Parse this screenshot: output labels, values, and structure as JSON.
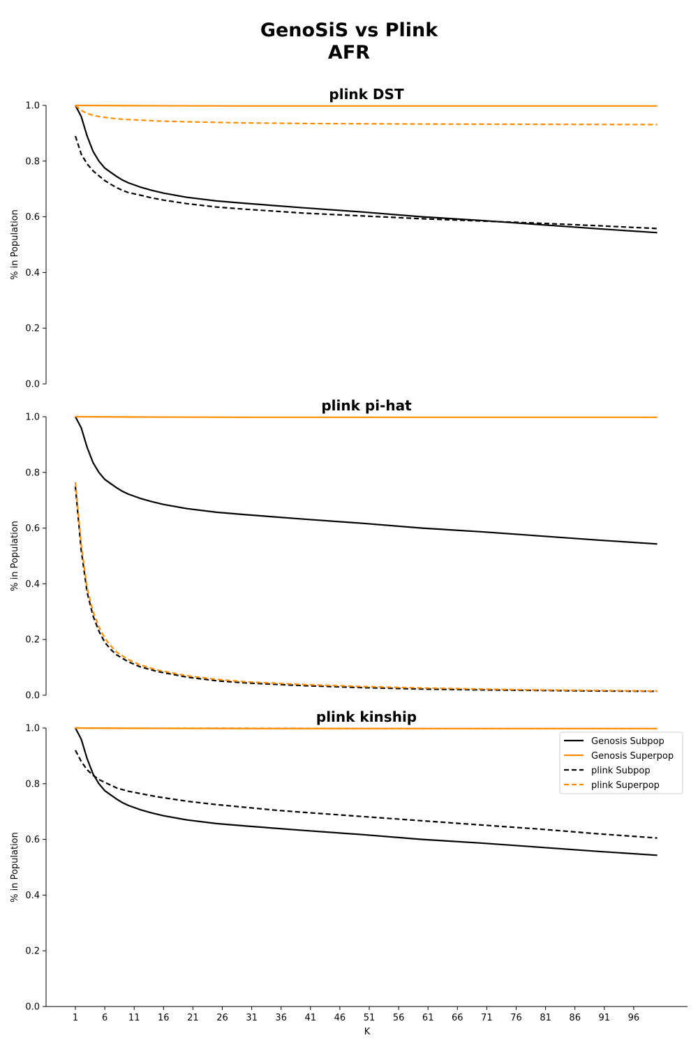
{
  "figure": {
    "title_line1": "GenoSiS vs Plink",
    "title_line2": "AFR"
  },
  "chart_data": [
    {
      "type": "line",
      "title": "plink DST",
      "xlabel": "",
      "ylabel": "% in Population",
      "xlim": [
        1,
        100
      ],
      "ylim": [
        0.0,
        1.0
      ],
      "x_ticks": [
        1,
        6,
        11,
        16,
        21,
        26,
        31,
        36,
        41,
        46,
        51,
        56,
        61,
        66,
        71,
        76,
        81,
        86,
        91,
        96
      ],
      "y_ticks": [
        0.0,
        0.2,
        0.4,
        0.6,
        0.8,
        1.0
      ],
      "show_x_ticks": false,
      "grid": false,
      "series": [
        {
          "name": "Genosis Subpop",
          "color": "#000000",
          "dash": "solid",
          "x": [
            1,
            2,
            3,
            4,
            5,
            6,
            7,
            8,
            9,
            10,
            12,
            14,
            16,
            20,
            25,
            30,
            40,
            50,
            60,
            70,
            80,
            90,
            100
          ],
          "values": [
            1.0,
            0.96,
            0.89,
            0.835,
            0.8,
            0.775,
            0.76,
            0.745,
            0.732,
            0.722,
            0.707,
            0.695,
            0.685,
            0.67,
            0.657,
            0.648,
            0.632,
            0.617,
            0.6,
            0.587,
            0.572,
            0.557,
            0.543
          ]
        },
        {
          "name": "Genosis Superpop",
          "color": "#ff8c00",
          "dash": "solid",
          "x": [
            1,
            10,
            30,
            60,
            100
          ],
          "values": [
            1.0,
            0.999,
            0.998,
            0.998,
            0.998
          ]
        },
        {
          "name": "plink Subpop",
          "color": "#000000",
          "dash": "dashed",
          "x": [
            1,
            2,
            3,
            4,
            5,
            6,
            7,
            8,
            9,
            10,
            12,
            14,
            16,
            20,
            25,
            30,
            40,
            50,
            60,
            70,
            80,
            90,
            100
          ],
          "values": [
            0.89,
            0.825,
            0.79,
            0.765,
            0.747,
            0.73,
            0.717,
            0.705,
            0.695,
            0.687,
            0.678,
            0.668,
            0.66,
            0.647,
            0.635,
            0.627,
            0.613,
            0.603,
            0.593,
            0.585,
            0.577,
            0.568,
            0.558
          ]
        },
        {
          "name": "plink Superpop",
          "color": "#ff8c00",
          "dash": "dashed",
          "x": [
            1,
            2,
            3,
            4,
            5,
            6,
            8,
            10,
            15,
            20,
            30,
            40,
            60,
            80,
            100
          ],
          "values": [
            1.0,
            0.982,
            0.971,
            0.965,
            0.96,
            0.957,
            0.952,
            0.949,
            0.944,
            0.941,
            0.937,
            0.935,
            0.933,
            0.932,
            0.931
          ]
        }
      ]
    },
    {
      "type": "line",
      "title": "plink pi-hat",
      "xlabel": "",
      "ylabel": "% in Population",
      "xlim": [
        1,
        100
      ],
      "ylim": [
        0.0,
        1.0
      ],
      "x_ticks": [
        1,
        6,
        11,
        16,
        21,
        26,
        31,
        36,
        41,
        46,
        51,
        56,
        61,
        66,
        71,
        76,
        81,
        86,
        91,
        96
      ],
      "y_ticks": [
        0.0,
        0.2,
        0.4,
        0.6,
        0.8,
        1.0
      ],
      "show_x_ticks": false,
      "grid": false,
      "series": [
        {
          "name": "Genosis Subpop",
          "color": "#000000",
          "dash": "solid",
          "x": [
            1,
            2,
            3,
            4,
            5,
            6,
            7,
            8,
            9,
            10,
            12,
            14,
            16,
            20,
            25,
            30,
            40,
            50,
            60,
            70,
            80,
            90,
            100
          ],
          "values": [
            1.0,
            0.96,
            0.89,
            0.835,
            0.8,
            0.775,
            0.76,
            0.745,
            0.732,
            0.722,
            0.707,
            0.695,
            0.685,
            0.67,
            0.657,
            0.648,
            0.632,
            0.617,
            0.6,
            0.587,
            0.572,
            0.557,
            0.543
          ]
        },
        {
          "name": "Genosis Superpop",
          "color": "#ff8c00",
          "dash": "solid",
          "x": [
            1,
            10,
            30,
            60,
            100
          ],
          "values": [
            1.0,
            0.999,
            0.998,
            0.998,
            0.998
          ]
        },
        {
          "name": "plink Subpop",
          "color": "#000000",
          "dash": "dashed",
          "x": [
            1,
            2,
            3,
            4,
            5,
            6,
            7,
            8,
            10,
            12,
            15,
            20,
            25,
            30,
            40,
            50,
            60,
            70,
            80,
            90,
            100
          ],
          "values": [
            0.75,
            0.52,
            0.37,
            0.285,
            0.23,
            0.19,
            0.165,
            0.145,
            0.12,
            0.102,
            0.085,
            0.065,
            0.052,
            0.044,
            0.034,
            0.027,
            0.022,
            0.019,
            0.017,
            0.015,
            0.014
          ]
        },
        {
          "name": "plink Superpop",
          "color": "#ff8c00",
          "dash": "dashed",
          "x": [
            1,
            2,
            3,
            4,
            5,
            6,
            7,
            8,
            10,
            12,
            15,
            20,
            25,
            30,
            40,
            50,
            60,
            70,
            80,
            90,
            100
          ],
          "values": [
            0.765,
            0.54,
            0.385,
            0.3,
            0.245,
            0.205,
            0.178,
            0.155,
            0.128,
            0.109,
            0.09,
            0.07,
            0.057,
            0.048,
            0.038,
            0.031,
            0.026,
            0.022,
            0.019,
            0.017,
            0.015
          ]
        }
      ]
    },
    {
      "type": "line",
      "title": "plink kinship",
      "xlabel": "K",
      "ylabel": "% in Population",
      "xlim": [
        1,
        100
      ],
      "ylim": [
        0.0,
        1.0
      ],
      "x_ticks": [
        1,
        6,
        11,
        16,
        21,
        26,
        31,
        36,
        41,
        46,
        51,
        56,
        61,
        66,
        71,
        76,
        81,
        86,
        91,
        96
      ],
      "y_ticks": [
        0.0,
        0.2,
        0.4,
        0.6,
        0.8,
        1.0
      ],
      "show_x_ticks": true,
      "grid": false,
      "legend": "upper right",
      "series": [
        {
          "name": "Genosis Subpop",
          "color": "#000000",
          "dash": "solid",
          "x": [
            1,
            2,
            3,
            4,
            5,
            6,
            7,
            8,
            9,
            10,
            12,
            14,
            16,
            20,
            25,
            30,
            40,
            50,
            60,
            70,
            80,
            90,
            100
          ],
          "values": [
            1.0,
            0.96,
            0.89,
            0.835,
            0.8,
            0.775,
            0.76,
            0.745,
            0.732,
            0.722,
            0.707,
            0.695,
            0.685,
            0.67,
            0.657,
            0.648,
            0.632,
            0.617,
            0.6,
            0.587,
            0.572,
            0.557,
            0.543
          ]
        },
        {
          "name": "Genosis Superpop",
          "color": "#ff8c00",
          "dash": "solid",
          "x": [
            1,
            10,
            30,
            60,
            100
          ],
          "values": [
            1.0,
            0.999,
            0.998,
            0.998,
            0.998
          ]
        },
        {
          "name": "plink Subpop",
          "color": "#000000",
          "dash": "dashed",
          "x": [
            1,
            2,
            3,
            4,
            5,
            6,
            7,
            8,
            10,
            12,
            15,
            20,
            25,
            30,
            35,
            40,
            50,
            60,
            70,
            80,
            90,
            100
          ],
          "values": [
            0.92,
            0.88,
            0.85,
            0.83,
            0.815,
            0.805,
            0.795,
            0.785,
            0.773,
            0.765,
            0.753,
            0.737,
            0.725,
            0.715,
            0.705,
            0.697,
            0.682,
            0.667,
            0.652,
            0.637,
            0.62,
            0.605
          ]
        },
        {
          "name": "plink Superpop",
          "color": "#ff8c00",
          "dash": "dashed",
          "x": [
            1,
            10,
            30,
            60,
            100
          ],
          "values": [
            1.0,
            0.999,
            0.999,
            0.998,
            0.998
          ]
        }
      ]
    }
  ]
}
